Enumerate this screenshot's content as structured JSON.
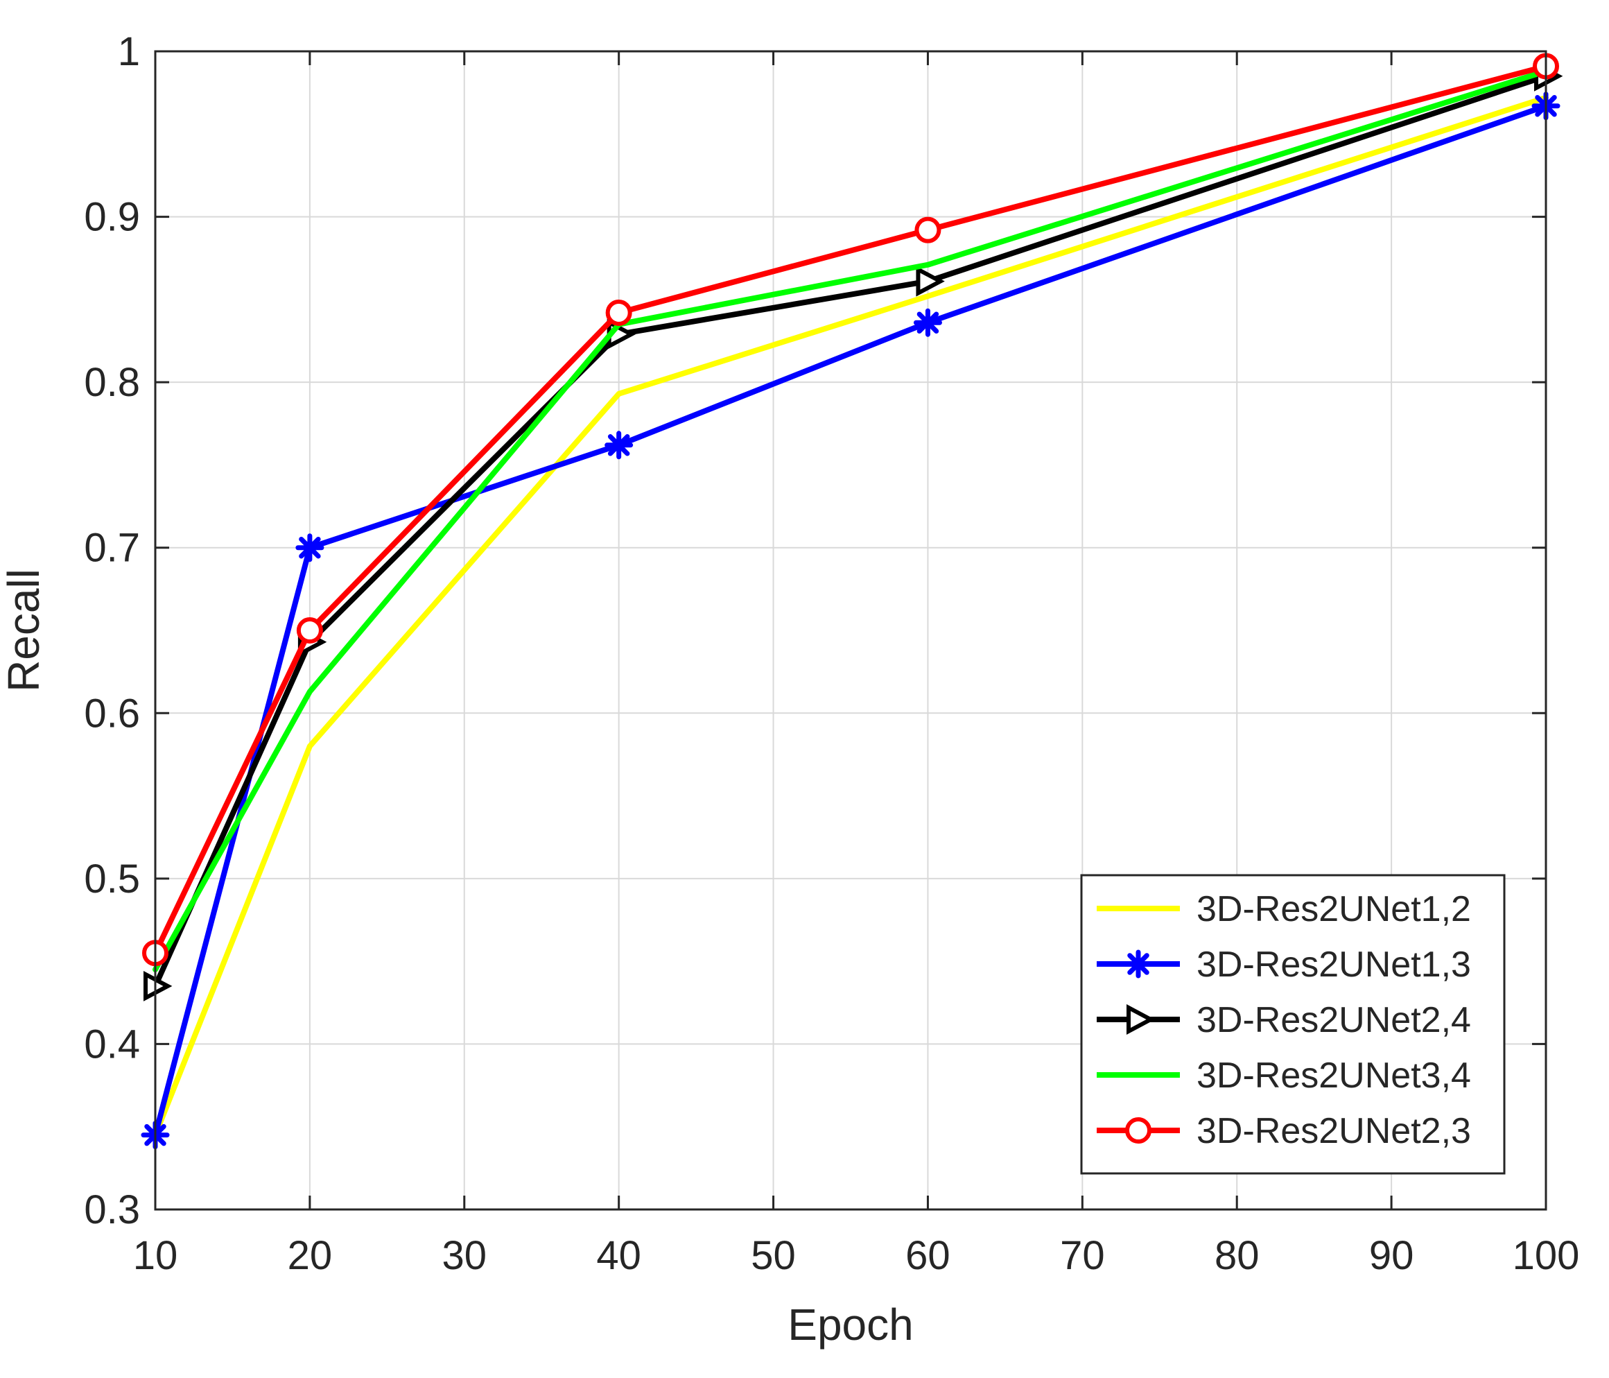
{
  "chart_data": {
    "type": "line",
    "title": "",
    "xlabel": "Epoch",
    "ylabel": "Recall",
    "xlim": [
      10,
      100
    ],
    "ylim": [
      0.3,
      1
    ],
    "xticks": [
      10,
      20,
      30,
      40,
      50,
      60,
      70,
      80,
      90,
      100
    ],
    "yticks": [
      0.3,
      0.4,
      0.5,
      0.6,
      0.7,
      0.8,
      0.9,
      1
    ],
    "xtick_labels": [
      "10",
      "20",
      "30",
      "40",
      "50",
      "60",
      "70",
      "80",
      "90",
      "100"
    ],
    "ytick_labels": [
      "0.3",
      "0.4",
      "0.5",
      "0.6",
      "0.7",
      "0.8",
      "0.9",
      "1"
    ],
    "grid": true,
    "legend_position": "bottom-right",
    "x": [
      10,
      20,
      40,
      60,
      100
    ],
    "series": [
      {
        "name": "3D-Res2UNet1,2",
        "color": "#ffff00",
        "marker": "none",
        "values": [
          0.345,
          0.58,
          0.793,
          0.852,
          0.972
        ]
      },
      {
        "name": "3D-Res2UNet1,3",
        "color": "#0000ff",
        "marker": "asterisk",
        "values": [
          0.345,
          0.7,
          0.762,
          0.836,
          0.967
        ]
      },
      {
        "name": "3D-Res2UNet2,4",
        "color": "#000000",
        "marker": "triangle-right",
        "values": [
          0.435,
          0.643,
          0.829,
          0.861,
          0.985
        ]
      },
      {
        "name": "3D-Res2UNet3,4",
        "color": "#00ff00",
        "marker": "none",
        "values": [
          0.445,
          0.613,
          0.835,
          0.871,
          0.988
        ]
      },
      {
        "name": "3D-Res2UNet2,3",
        "color": "#ff0000",
        "marker": "circle",
        "values": [
          0.455,
          0.65,
          0.842,
          0.892,
          0.991
        ]
      }
    ]
  }
}
